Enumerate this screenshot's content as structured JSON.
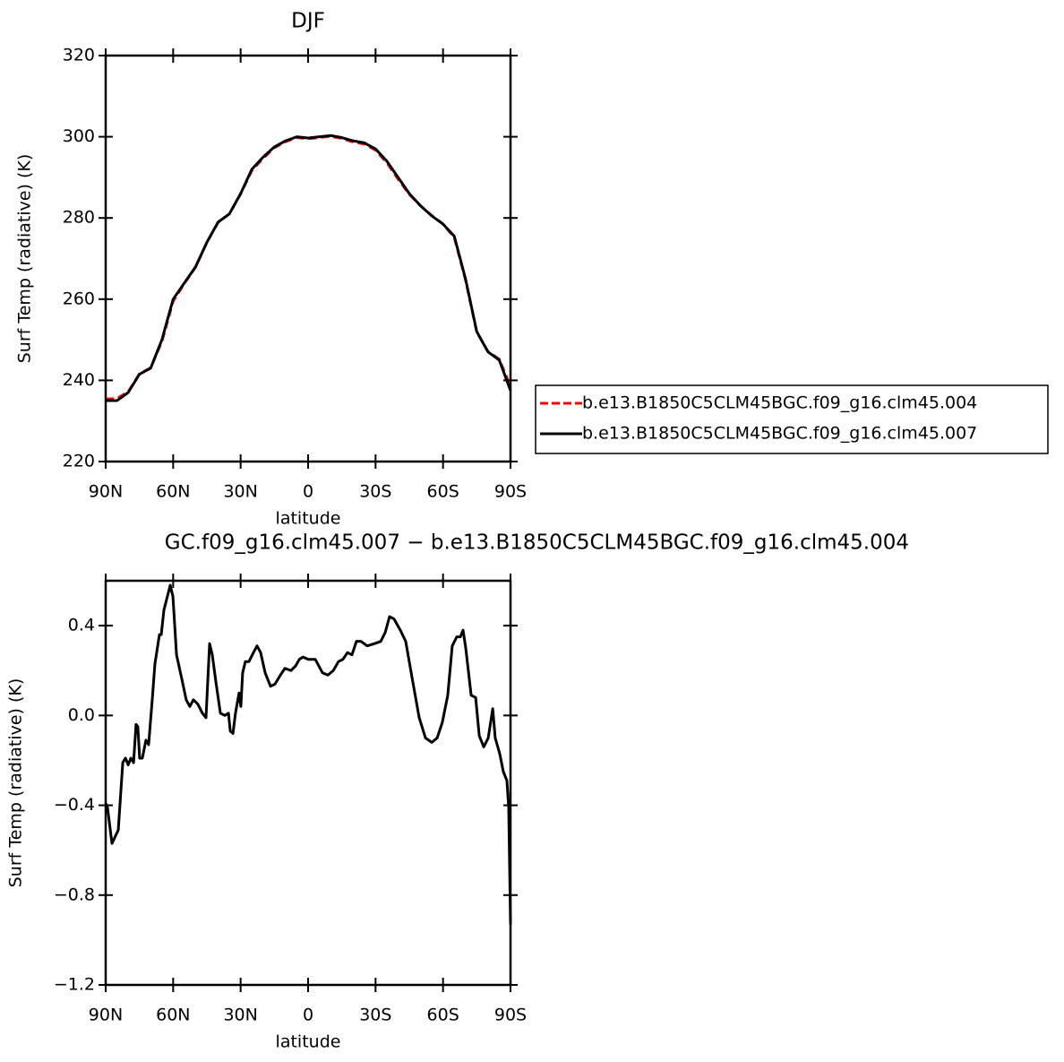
{
  "chart_data": [
    {
      "type": "line",
      "title": "DJF",
      "x_label": "latitude",
      "y_label": "Surf Temp (radiative) (K)",
      "x": [
        90,
        85,
        80,
        75,
        70,
        65,
        60,
        55,
        50,
        45,
        40,
        35,
        30,
        25,
        20,
        15,
        10,
        5,
        0,
        -5,
        -10,
        -15,
        -20,
        -25,
        -30,
        -35,
        -40,
        -45,
        -50,
        -55,
        -60,
        -65,
        -70,
        -75,
        -80,
        -85,
        -90
      ],
      "series": [
        {
          "name": "b.e13.B1850C5CLM45BGC.f09_g16.clm45.004",
          "color": "#ff0000",
          "style": "dashed",
          "values": [
            235.4,
            235.5,
            237.2,
            241.6,
            243.1,
            249.6,
            259.5,
            263.9,
            267.9,
            274.0,
            278.9,
            281.0,
            285.9,
            291.7,
            294.7,
            297.3,
            298.8,
            299.8,
            299.5,
            299.8,
            300.1,
            299.6,
            298.7,
            298.2,
            296.7,
            293.6,
            289.6,
            285.8,
            283.0,
            280.6,
            278.5,
            275.2,
            264.7,
            251.9,
            247.1,
            245.2,
            238.4
          ]
        },
        {
          "name": "b.e13.B1850C5CLM45BGC.f09_g16.clm45.007",
          "color": "#000000",
          "style": "solid",
          "values": [
            235,
            235,
            237,
            241.5,
            243,
            250,
            260,
            264,
            268,
            274,
            279,
            281,
            286,
            292,
            295,
            297.5,
            299,
            300,
            299.7,
            300,
            300.3,
            299.8,
            299,
            298.5,
            297,
            294,
            290,
            286,
            283,
            280.5,
            278.5,
            275.5,
            265,
            252,
            247,
            245,
            237.5
          ]
        }
      ],
      "xlim": [
        90,
        -90
      ],
      "xticks": [
        {
          "value": 90,
          "label": "90N"
        },
        {
          "value": 60,
          "label": "60N"
        },
        {
          "value": 30,
          "label": "30N"
        },
        0,
        {
          "value": -30,
          "label": "30S"
        },
        {
          "value": -60,
          "label": "60S"
        },
        {
          "value": -90,
          "label": "90S"
        }
      ],
      "ylim": [
        220,
        320
      ],
      "yticks": [
        220,
        240,
        260,
        280,
        300,
        320
      ],
      "legend": "right"
    },
    {
      "type": "line",
      "title": "GC.f09_g16.clm45.007 − b.e13.B1850C5CLM45BGC.f09_g16.clm45.004",
      "x_label": "latitude",
      "y_label": "Surf Temp (radiative) (K)",
      "x": [
        90,
        89.2,
        87.2,
        84.4,
        82.4,
        81.2,
        80,
        78.8,
        77.6,
        76.5,
        75.7,
        74.9,
        73.7,
        72.1,
        70.9,
        69.3,
        68.1,
        66.1,
        65.3,
        64.1,
        61.3,
        60.1,
        58.5,
        56.1,
        54.2,
        52.6,
        51,
        49,
        47,
        45.4,
        43.8,
        42.6,
        41,
        39,
        37,
        35.4,
        34.6,
        33.4,
        32.3,
        30.7,
        29.9,
        29.1,
        27.9,
        26.3,
        24.3,
        22.7,
        21.1,
        19.1,
        16.7,
        14.7,
        12.3,
        10.3,
        7.6,
        5.6,
        3.9,
        2.3,
        -0.1,
        -3.2,
        -4.8,
        -6.4,
        -8.8,
        -11.2,
        -13.5,
        -15.5,
        -17.5,
        -19.5,
        -21.5,
        -23.5,
        -26.3,
        -29.5,
        -32.3,
        -34.3,
        -36.2,
        -38.2,
        -41,
        -43.4,
        -46.2,
        -49.4,
        -52.2,
        -55,
        -57.4,
        -59.7,
        -62.1,
        -64.1,
        -66.1,
        -67.7,
        -68.9,
        -70.1,
        -72.5,
        -74.5,
        -76.1,
        -78.1,
        -80.1,
        -82.1,
        -83.2,
        -85.2,
        -86.8,
        -88.4,
        -89.2,
        -90
      ],
      "series": [
        {
          "color": "#000000",
          "style": "solid",
          "values": [
            -0.39,
            -0.41,
            -0.57,
            -0.51,
            -0.21,
            -0.19,
            -0.22,
            -0.19,
            -0.21,
            -0.04,
            -0.05,
            -0.19,
            -0.19,
            -0.11,
            -0.13,
            0.07,
            0.23,
            0.36,
            0.36,
            0.47,
            0.58,
            0.53,
            0.27,
            0.16,
            0.07,
            0.04,
            0.07,
            0.05,
            0.01,
            -0.01,
            0.32,
            0.27,
            0.15,
            0.01,
            0.0,
            0.01,
            -0.07,
            -0.08,
            0.01,
            0.1,
            0.04,
            0.19,
            0.24,
            0.24,
            0.28,
            0.31,
            0.28,
            0.19,
            0.13,
            0.14,
            0.18,
            0.21,
            0.2,
            0.22,
            0.25,
            0.26,
            0.25,
            0.25,
            0.22,
            0.19,
            0.18,
            0.2,
            0.24,
            0.25,
            0.28,
            0.27,
            0.33,
            0.33,
            0.31,
            0.32,
            0.33,
            0.37,
            0.44,
            0.43,
            0.38,
            0.33,
            0.17,
            -0.01,
            -0.1,
            -0.12,
            -0.1,
            -0.03,
            0.09,
            0.31,
            0.35,
            0.35,
            0.38,
            0.3,
            0.09,
            0.08,
            -0.09,
            -0.14,
            -0.1,
            0.03,
            -0.1,
            -0.17,
            -0.25,
            -0.29,
            -0.41,
            -0.93
          ]
        }
      ],
      "xlim": [
        90,
        -90
      ],
      "xticks": [
        {
          "value": 90,
          "label": "90N"
        },
        {
          "value": 60,
          "label": "60N"
        },
        {
          "value": 30,
          "label": "30N"
        },
        0,
        {
          "value": -30,
          "label": "30S"
        },
        {
          "value": -60,
          "label": "60S"
        },
        {
          "value": -90,
          "label": "90S"
        }
      ],
      "ylim": [
        -1.2,
        0.6
      ],
      "yticks": [
        {
          "value": -1.2,
          "label": "−1.2"
        },
        {
          "value": -0.8,
          "label": "−0.8"
        },
        {
          "value": -0.4,
          "label": "−0.4"
        },
        {
          "value": 0,
          "label": "0.0"
        },
        0.4
      ]
    }
  ]
}
